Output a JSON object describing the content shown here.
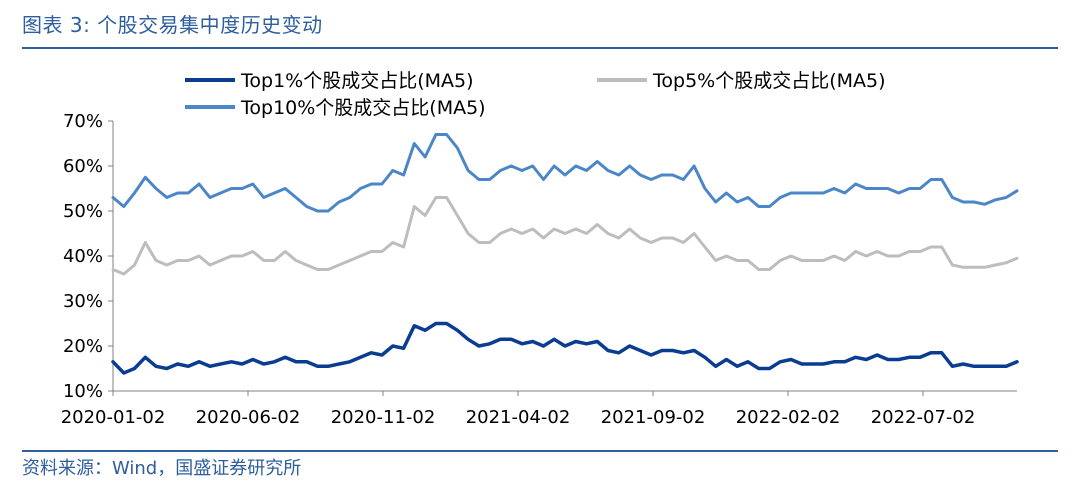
{
  "header": {
    "title": "图表 3:  个股交易集中度历史变动"
  },
  "footer": {
    "source": "资料来源：Wind，国盛证券研究所"
  },
  "chart_data": {
    "type": "line",
    "title": "个股交易集中度历史变动",
    "xlabel": "",
    "ylabel": "",
    "ylim": [
      10,
      70
    ],
    "y_ticks": [
      "10%",
      "20%",
      "30%",
      "40%",
      "50%",
      "60%",
      "70%"
    ],
    "x_tick_labels": [
      "2020-01-02",
      "2020-06-02",
      "2020-11-02",
      "2021-04-02",
      "2021-09-02",
      "2022-02-02",
      "2022-07-02"
    ],
    "legend_placement": "top",
    "series": [
      {
        "name": "Top1%个股成交占比(MA5)",
        "color": "#0a3d91",
        "values": [
          16.5,
          14,
          15,
          17.5,
          15.5,
          15,
          16,
          15.5,
          16.5,
          15.5,
          16,
          16.5,
          16,
          17,
          16,
          16.5,
          17.5,
          16.5,
          16.5,
          15.5,
          15.5,
          16,
          16.5,
          17.5,
          18.5,
          18,
          20,
          19.5,
          24.5,
          23.5,
          25,
          25,
          23.5,
          21.5,
          20,
          20.5,
          21.5,
          21.5,
          20.5,
          21,
          20,
          21.5,
          20,
          21,
          20.5,
          21,
          19,
          18.5,
          20,
          19,
          18,
          19,
          19,
          18.5,
          19,
          17.5,
          15.5,
          17,
          15.5,
          16.5,
          15,
          15,
          16.5,
          17,
          16,
          16,
          16,
          16.5,
          16.5,
          17.5,
          17,
          18,
          17,
          17,
          17.5,
          17.5,
          18.5,
          18.5,
          15.5,
          16,
          15.5,
          15.5,
          15.5,
          15.5,
          16.5
        ]
      },
      {
        "name": "Top5%个股成交占比(MA5)",
        "color": "#bdbdbd",
        "values": [
          37,
          36,
          38,
          43,
          39,
          38,
          39,
          39,
          40,
          38,
          39,
          40,
          40,
          41,
          39,
          39,
          41,
          39,
          38,
          37,
          37,
          38,
          39,
          40,
          41,
          41,
          43,
          42,
          51,
          49,
          53,
          53,
          49,
          45,
          43,
          43,
          45,
          46,
          45,
          46,
          44,
          46,
          45,
          46,
          45,
          47,
          45,
          44,
          46,
          44,
          43,
          44,
          44,
          43,
          45,
          42,
          39,
          40,
          39,
          39,
          37,
          37,
          39,
          40,
          39,
          39,
          39,
          40,
          39,
          41,
          40,
          41,
          40,
          40,
          41,
          41,
          42,
          42,
          38,
          37.5,
          37.5,
          37.5,
          38,
          38.5,
          39.5
        ]
      },
      {
        "name": "Top10%个股成交占比(MA5)",
        "color": "#4a86c8",
        "values": [
          53,
          51,
          54,
          57.5,
          55,
          53,
          54,
          54,
          56,
          53,
          54,
          55,
          55,
          56,
          53,
          54,
          55,
          53,
          51,
          50,
          50,
          52,
          53,
          55,
          56,
          56,
          59,
          58,
          65,
          62,
          67,
          67,
          64,
          59,
          57,
          57,
          59,
          60,
          59,
          60,
          57,
          60,
          58,
          60,
          59,
          61,
          59,
          58,
          60,
          58,
          57,
          58,
          58,
          57,
          60,
          55,
          52,
          54,
          52,
          53,
          51,
          51,
          53,
          54,
          54,
          54,
          54,
          55,
          54,
          56,
          55,
          55,
          55,
          54,
          55,
          55,
          57,
          57,
          53,
          52,
          52,
          51.5,
          52.5,
          53,
          54.5
        ]
      }
    ]
  }
}
